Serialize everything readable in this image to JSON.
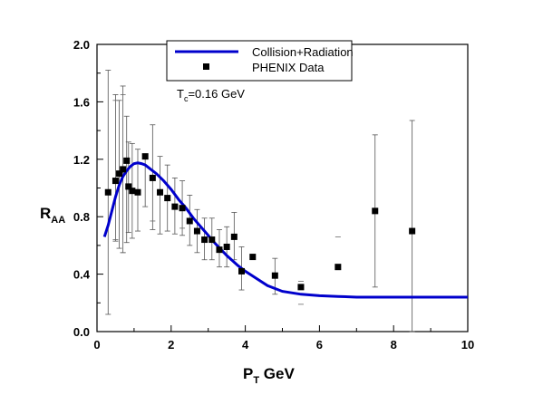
{
  "chart_data": {
    "type": "scatter",
    "title": "",
    "xlabel": {
      "main": "P",
      "sub": "T",
      "rest": " GeV"
    },
    "ylabel": {
      "main": "R",
      "sub": "AA"
    },
    "xlim": [
      0,
      10
    ],
    "ylim": [
      0,
      2.0
    ],
    "x_ticks": [
      0,
      2,
      4,
      6,
      8,
      10
    ],
    "x_tick_labels": [
      "0",
      "2",
      "4",
      "6",
      "8",
      "10"
    ],
    "y_ticks": [
      0.0,
      0.4,
      0.8,
      1.2,
      1.6,
      2.0
    ],
    "y_tick_labels": [
      "0.0",
      "0.4",
      "0.8",
      "1.2",
      "1.6",
      "2.0"
    ],
    "grid": false,
    "legend_position": "top-center",
    "annotation": {
      "main": "T",
      "sub": "c",
      "rest": "=0.16 GeV"
    },
    "series": [
      {
        "name": "Collision+Radiation",
        "kind": "line",
        "color": "#0000cc",
        "x": [
          0.2,
          0.3,
          0.4,
          0.5,
          0.6,
          0.7,
          0.8,
          0.9,
          1.0,
          1.1,
          1.2,
          1.3,
          1.4,
          1.5,
          1.6,
          1.8,
          2.0,
          2.2,
          2.4,
          2.6,
          2.8,
          3.0,
          3.2,
          3.5,
          3.8,
          4.0,
          4.3,
          4.6,
          5.0,
          5.5,
          6.0,
          6.5,
          7.0,
          8.0,
          9.0,
          10.0
        ],
        "y": [
          0.66,
          0.74,
          0.84,
          0.94,
          1.02,
          1.08,
          1.12,
          1.15,
          1.17,
          1.175,
          1.17,
          1.16,
          1.14,
          1.12,
          1.1,
          1.05,
          0.99,
          0.92,
          0.86,
          0.79,
          0.73,
          0.67,
          0.61,
          0.53,
          0.46,
          0.42,
          0.37,
          0.32,
          0.28,
          0.26,
          0.25,
          0.245,
          0.24,
          0.24,
          0.24,
          0.24
        ]
      },
      {
        "name": "PHENIX Data",
        "kind": "points",
        "color": "#000000",
        "points": [
          {
            "x": 0.3,
            "y": 0.97,
            "ylo": 0.12,
            "yhi": 1.82
          },
          {
            "x": 0.5,
            "y": 1.05,
            "ylo": 0.63,
            "yhi": 1.65
          },
          {
            "x": 0.6,
            "y": 1.1,
            "ylo": 0.58,
            "yhi": 1.61
          },
          {
            "x": 0.7,
            "y": 1.13,
            "ylo": 0.55,
            "yhi": 1.71
          },
          {
            "x": 0.8,
            "y": 1.19,
            "ylo": 0.62,
            "yhi": 1.5
          },
          {
            "x": 0.85,
            "y": 1.01,
            "ylo": 0.69,
            "yhi": 1.32
          },
          {
            "x": 0.95,
            "y": 0.98,
            "ylo": 0.65,
            "yhi": 1.31
          },
          {
            "x": 1.1,
            "y": 0.97,
            "ylo": 0.7,
            "yhi": 1.27
          },
          {
            "x": 1.3,
            "y": 1.22,
            "ylo": 0.87,
            "yhi": 1.22
          },
          {
            "x": 1.5,
            "y": 1.07,
            "ylo": 0.71,
            "yhi": 1.44
          },
          {
            "x": 1.7,
            "y": 0.97,
            "ylo": 0.68,
            "yhi": 1.22
          },
          {
            "x": 1.9,
            "y": 0.93,
            "ylo": 0.7,
            "yhi": 1.16
          },
          {
            "x": 2.1,
            "y": 0.87,
            "ylo": 0.68,
            "yhi": 1.07
          },
          {
            "x": 2.3,
            "y": 0.86,
            "ylo": 0.67,
            "yhi": 1.05
          },
          {
            "x": 2.5,
            "y": 0.77,
            "ylo": 0.6,
            "yhi": 0.95
          },
          {
            "x": 2.7,
            "y": 0.7,
            "ylo": 0.55,
            "yhi": 0.85
          },
          {
            "x": 2.9,
            "y": 0.64,
            "ylo": 0.5,
            "yhi": 0.79
          },
          {
            "x": 3.1,
            "y": 0.64,
            "ylo": 0.5,
            "yhi": 0.79
          },
          {
            "x": 3.3,
            "y": 0.57,
            "ylo": 0.45,
            "yhi": 0.71
          },
          {
            "x": 3.5,
            "y": 0.59,
            "ylo": 0.45,
            "yhi": 0.73
          },
          {
            "x": 3.7,
            "y": 0.66,
            "ylo": 0.5,
            "yhi": 0.83
          },
          {
            "x": 3.9,
            "y": 0.42,
            "ylo": 0.29,
            "yhi": 0.59
          },
          {
            "x": 4.2,
            "y": 0.52,
            "ylo": 0.52,
            "yhi": 0.52
          },
          {
            "x": 4.8,
            "y": 0.39,
            "ylo": 0.26,
            "yhi": 0.51
          },
          {
            "x": 5.5,
            "y": 0.31,
            "ylo": 0.31,
            "yhi": 0.31
          },
          {
            "x": 6.5,
            "y": 0.45,
            "ylo": 0.45,
            "yhi": 0.45
          },
          {
            "x": 7.5,
            "y": 0.84,
            "ylo": 0.31,
            "yhi": 1.37
          },
          {
            "x": 8.5,
            "y": 0.7,
            "ylo": 0.0,
            "yhi": 1.47
          }
        ],
        "dashes": [
          {
            "x": 0.5,
            "y": 1.61
          },
          {
            "x": 0.7,
            "y": 1.65
          },
          {
            "x": 0.5,
            "y": 0.64
          },
          {
            "x": 0.7,
            "y": 0.55
          },
          {
            "x": 1.5,
            "y": 0.77
          },
          {
            "x": 2.3,
            "y": 0.72
          },
          {
            "x": 5.5,
            "y": 0.19
          },
          {
            "x": 5.5,
            "y": 0.35
          },
          {
            "x": 6.5,
            "y": 0.66
          }
        ]
      }
    ]
  }
}
